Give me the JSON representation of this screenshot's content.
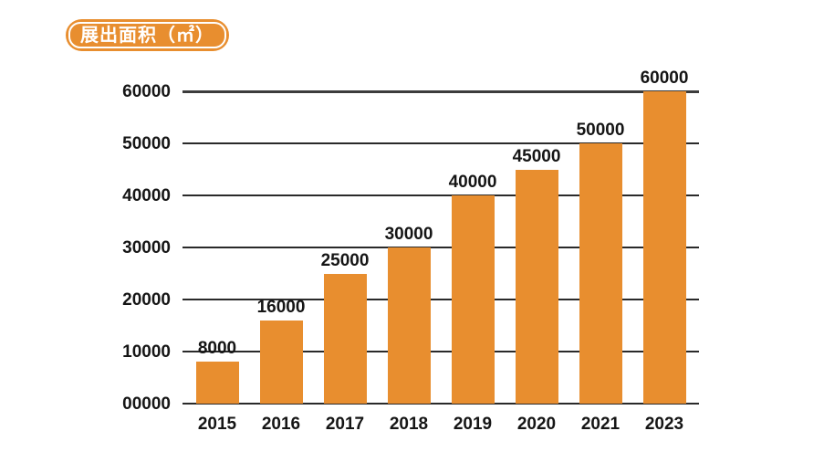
{
  "badge": {
    "label": "展出面积（㎡）"
  },
  "colors": {
    "accent": "#E88E2F",
    "gridline": "#2A2A2A",
    "gridline_top": "#3C3C3C",
    "label_text": "#151515",
    "badge_text": "#FFFFFF",
    "background": "#FFFFFF"
  },
  "chart_data": {
    "type": "bar",
    "title": "展出面积（㎡）",
    "categories": [
      "2015",
      "2016",
      "2017",
      "2018",
      "2019",
      "2020",
      "2021",
      "2023"
    ],
    "values": [
      8000,
      16000,
      25000,
      30000,
      40000,
      45000,
      50000,
      60000
    ],
    "data_labels": [
      "8000",
      "16000",
      "25000",
      "30000",
      "40000",
      "45000",
      "50000",
      "60000"
    ],
    "y_tick_labels": [
      "00000",
      "10000",
      "20000",
      "30000",
      "40000",
      "50000",
      "60000"
    ],
    "y_tick_values": [
      0,
      10000,
      20000,
      30000,
      40000,
      50000,
      60000
    ],
    "xlabel": "",
    "ylabel": "",
    "ylim": [
      0,
      60000
    ],
    "grid": "horizontal",
    "legend": "none",
    "bar_color": "#E88E2F"
  }
}
